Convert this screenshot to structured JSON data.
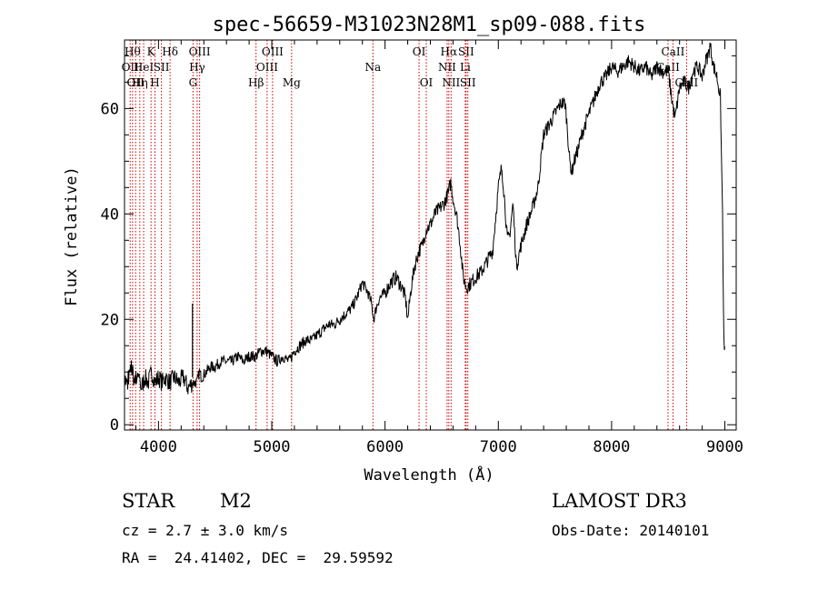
{
  "chart_data": {
    "type": "line",
    "title": "spec-56659-M31023N28M1_sp09-088.fits",
    "xlabel": "Wavelength (Å)",
    "ylabel": "Flux (relative)",
    "xlim": [
      3700,
      9100
    ],
    "ylim": [
      -1,
      73
    ],
    "x_ticks": [
      4000,
      5000,
      6000,
      7000,
      8000,
      9000
    ],
    "y_ticks": [
      0,
      20,
      40,
      60
    ],
    "grid": false,
    "line_color": "#000000",
    "marker_color": "#cc0000",
    "spectrum": {
      "x": [
        3700,
        3730,
        3760,
        3790,
        3820,
        3850,
        3880,
        3910,
        3940,
        3970,
        4000,
        4030,
        4060,
        4100,
        4140,
        4180,
        4220,
        4260,
        4300,
        4340,
        4360,
        4380,
        4420,
        4460,
        4500,
        4550,
        4600,
        4650,
        4700,
        4750,
        4800,
        4860,
        4900,
        4950,
        5000,
        5050,
        5100,
        5150,
        5200,
        5250,
        5300,
        5350,
        5400,
        5450,
        5500,
        5550,
        5600,
        5650,
        5700,
        5750,
        5800,
        5850,
        5880,
        5900,
        5920,
        5950,
        6000,
        6050,
        6100,
        6150,
        6180,
        6200,
        6230,
        6260,
        6300,
        6330,
        6360,
        6400,
        6440,
        6480,
        6520,
        6560,
        6580,
        6600,
        6630,
        6660,
        6690,
        6720,
        6760,
        6800,
        6850,
        6900,
        6950,
        7000,
        7030,
        7050,
        7080,
        7100,
        7130,
        7160,
        7200,
        7250,
        7300,
        7350,
        7400,
        7450,
        7500,
        7550,
        7590,
        7610,
        7630,
        7650,
        7670,
        7700,
        7750,
        7800,
        7850,
        7900,
        7950,
        8000,
        8050,
        8100,
        8150,
        8200,
        8250,
        8300,
        8350,
        8400,
        8450,
        8500,
        8530,
        8560,
        8600,
        8640,
        8680,
        8720,
        8760,
        8800,
        8830,
        8850,
        8870,
        8900,
        8930,
        8960,
        8980,
        8990,
        9000
      ],
      "y": [
        9,
        7,
        11,
        8,
        10,
        7,
        9,
        8,
        10,
        8,
        9,
        8,
        9,
        8,
        9,
        8,
        9,
        7,
        8,
        8,
        10,
        9,
        10,
        11,
        11,
        12,
        12,
        12,
        13,
        12,
        13,
        13,
        14,
        14,
        13,
        12,
        13,
        12,
        14,
        15,
        16,
        16,
        17,
        18,
        19,
        19,
        20,
        21,
        22,
        24,
        27,
        25,
        23,
        20,
        22,
        24,
        25,
        27,
        28,
        26,
        24,
        20,
        26,
        30,
        33,
        34,
        37,
        38,
        40,
        41,
        42,
        44,
        46,
        43,
        40,
        35,
        28,
        26,
        27,
        28,
        29,
        31,
        33,
        45,
        49,
        44,
        35,
        36,
        42,
        30,
        34,
        38,
        41,
        45,
        55,
        57,
        59,
        61,
        61,
        56,
        50,
        48,
        50,
        52,
        56,
        59,
        62,
        65,
        66,
        68,
        67,
        68,
        69,
        68,
        67,
        68,
        66,
        68,
        67,
        67,
        62,
        58,
        64,
        65,
        64,
        67,
        68,
        66,
        69,
        70,
        72,
        68,
        66,
        62,
        40,
        16,
        14
      ],
      "annotations": [
        {
          "wavelength": 4300,
          "flux": 23,
          "label": "spike"
        }
      ]
    },
    "line_markers": [
      {
        "wavelength": 3750,
        "label": "OII",
        "row": 2
      },
      {
        "wavelength": 3771,
        "label": "Hθ",
        "row": 1
      },
      {
        "wavelength": 3798,
        "label": "OII",
        "row": 3
      },
      {
        "wavelength": 3835,
        "label": "Hη",
        "row": 3
      },
      {
        "wavelength": 3869,
        "label": "HeI",
        "row": 2
      },
      {
        "wavelength": 3934,
        "label": "K",
        "row": 1
      },
      {
        "wavelength": 3969,
        "label": "H",
        "row": 3
      },
      {
        "wavelength": 4026,
        "label": "SII",
        "row": 2
      },
      {
        "wavelength": 4102,
        "label": "Hδ",
        "row": 1
      },
      {
        "wavelength": 4305,
        "label": "G",
        "row": 3
      },
      {
        "wavelength": 4341,
        "label": "Hγ",
        "row": 2
      },
      {
        "wavelength": 4363,
        "label": "OIII",
        "row": 1
      },
      {
        "wavelength": 4861,
        "label": "Hβ",
        "row": 3
      },
      {
        "wavelength": 4959,
        "label": "OIII",
        "row": 2
      },
      {
        "wavelength": 5007,
        "label": "OIII",
        "row": 1
      },
      {
        "wavelength": 5175,
        "label": "Mg",
        "row": 3
      },
      {
        "wavelength": 5893,
        "label": "Na",
        "row": 2
      },
      {
        "wavelength": 6300,
        "label": "OI",
        "row": 1
      },
      {
        "wavelength": 6364,
        "label": "OI",
        "row": 3
      },
      {
        "wavelength": 6548,
        "label": "NII",
        "row": 2
      },
      {
        "wavelength": 6563,
        "label": "Hα",
        "row": 1
      },
      {
        "wavelength": 6583,
        "label": "NII",
        "row": 3
      },
      {
        "wavelength": 6708,
        "label": "Li",
        "row": 2
      },
      {
        "wavelength": 6716,
        "label": "SII",
        "row": 1
      },
      {
        "wavelength": 6731,
        "label": "SII",
        "row": 3
      },
      {
        "wavelength": 8498,
        "label": "CaII",
        "row": 2
      },
      {
        "wavelength": 8542,
        "label": "CaII",
        "row": 1
      },
      {
        "wavelength": 8662,
        "label": "CaII",
        "row": 3
      }
    ]
  },
  "info": {
    "class": "STAR",
    "subclass": "M2",
    "survey": "LAMOST DR3",
    "cz": "cz = 2.7 ± 3.0 km/s",
    "obs_date": "Obs-Date: 20140101",
    "coords": "RA =  24.41402, DEC =  29.59592"
  }
}
